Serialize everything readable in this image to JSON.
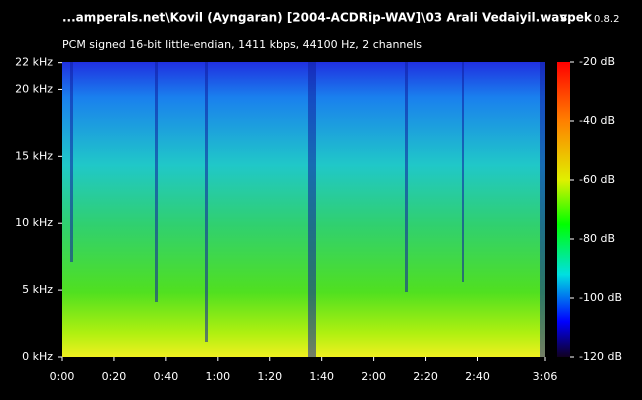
{
  "chart_data": {
    "type": "spectrogram",
    "title": "...amperals.net\\Kovil (Ayngaran) [2004-ACDRip-WAV]\\03 Arali Vedaiyil.wav",
    "app": "spek",
    "version": "0.8.2",
    "subtitle": "PCM signed 16-bit little-endian, 1411 kbps, 44100 Hz, 2 channels",
    "xlim": [
      0,
      186
    ],
    "xticks": [
      {
        "value": 0,
        "label": "0:00"
      },
      {
        "value": 20,
        "label": "0:20"
      },
      {
        "value": 40,
        "label": "0:40"
      },
      {
        "value": 60,
        "label": "1:00"
      },
      {
        "value": 80,
        "label": "1:20"
      },
      {
        "value": 100,
        "label": "1:40"
      },
      {
        "value": 120,
        "label": "2:00"
      },
      {
        "value": 140,
        "label": "2:20"
      },
      {
        "value": 160,
        "label": "2:40"
      },
      {
        "value": 186,
        "label": "3:06"
      }
    ],
    "ylim": [
      0,
      22.05
    ],
    "yticks": [
      {
        "value": 0,
        "label": "0 kHz"
      },
      {
        "value": 5,
        "label": "5 kHz"
      },
      {
        "value": 10,
        "label": "10 kHz"
      },
      {
        "value": 15,
        "label": "15 kHz"
      },
      {
        "value": 20,
        "label": "20 kHz"
      },
      {
        "value": 22,
        "label": "22 kHz"
      }
    ],
    "y2lim": [
      -120,
      -20
    ],
    "y2ticks": [
      {
        "value": -20,
        "label": "-20 dB"
      },
      {
        "value": -40,
        "label": "-40 dB"
      },
      {
        "value": -60,
        "label": "-60 dB"
      },
      {
        "value": -80,
        "label": "-80 dB"
      },
      {
        "value": -100,
        "label": "-100 dB"
      },
      {
        "value": -120,
        "label": "-120 dB"
      }
    ]
  }
}
